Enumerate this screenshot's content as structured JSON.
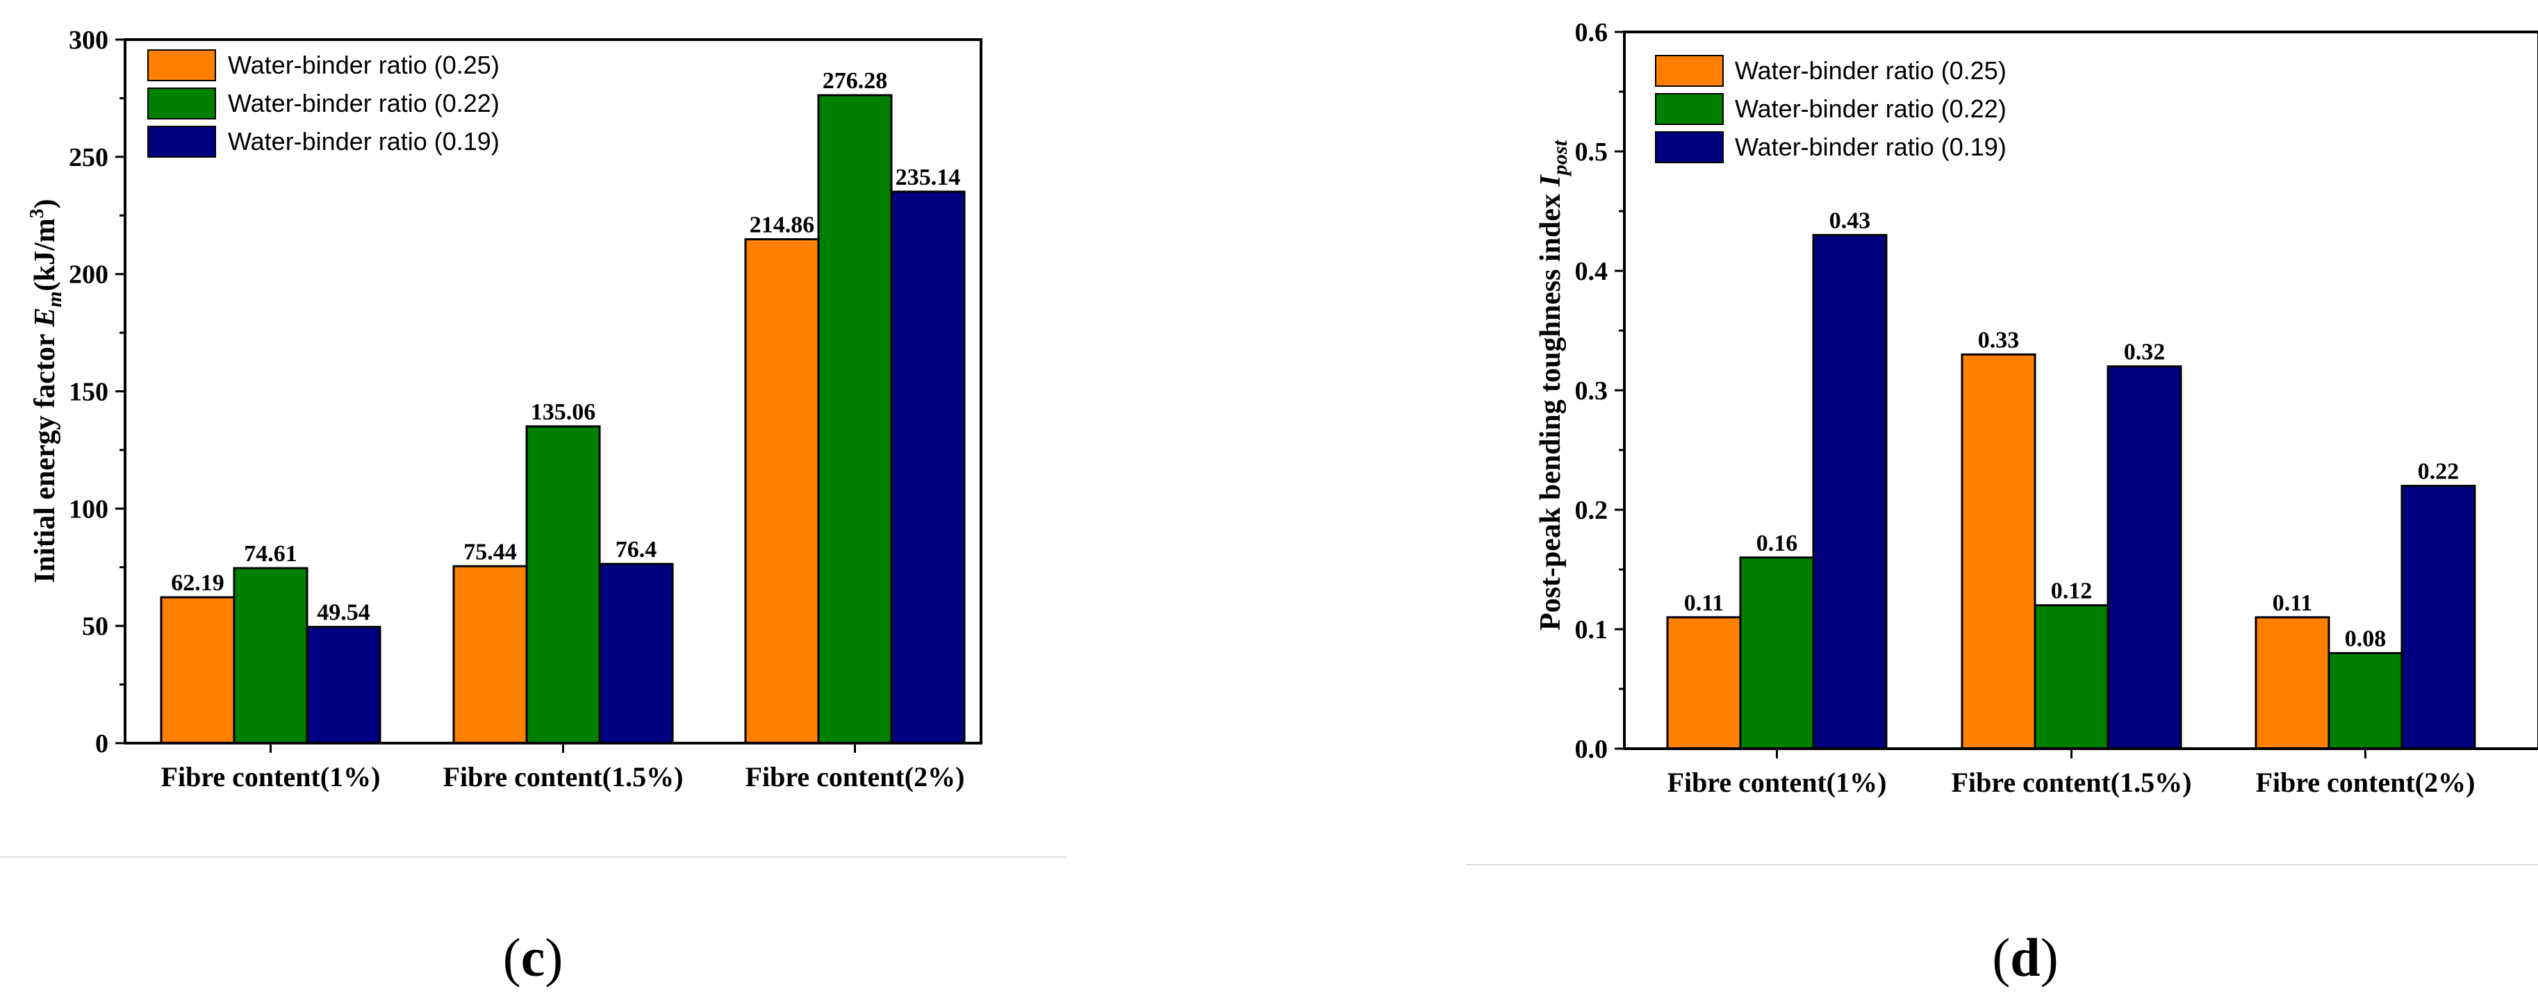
{
  "chart_data": [
    {
      "type": "bar",
      "panel_label": "c",
      "categories": [
        "Fibre content(1%)",
        "Fibre content(1.5%)",
        "Fibre content(2%)"
      ],
      "series": [
        {
          "name": "Water-binder ratio (0.25)",
          "color": "#ff8000",
          "values": [
            62.19,
            75.44,
            214.86
          ]
        },
        {
          "name": "Water-binder ratio (0.22)",
          "color": "#008000",
          "values": [
            74.61,
            135.06,
            276.28
          ]
        },
        {
          "name": "Water-binder ratio (0.19)",
          "color": "#000080",
          "values": [
            49.54,
            76.4,
            235.14
          ]
        }
      ],
      "data_labels": [
        [
          "62.19",
          "75.44",
          "214.86"
        ],
        [
          "74.61",
          "135.06",
          "276.28"
        ],
        [
          "49.54",
          "76.4",
          "235.14"
        ]
      ],
      "ylim": [
        0,
        300
      ],
      "yticks": [
        "0",
        "50",
        "100",
        "150",
        "200",
        "250",
        "300"
      ],
      "ylabel_main": "Initial energy factor ",
      "ylabel_symbol": "E",
      "ylabel_subscript": "m",
      "ylabel_unit": "(kJ/m",
      "ylabel_unit_sup": "3",
      "ylabel_unit_close": ")",
      "legend_position": "top-left"
    },
    {
      "type": "bar",
      "panel_label": "d",
      "categories": [
        "Fibre content(1%)",
        "Fibre content(1.5%)",
        "Fibre content(2%)"
      ],
      "series": [
        {
          "name": "Water-binder ratio (0.25)",
          "color": "#ff8000",
          "values": [
            0.11,
            0.33,
            0.11
          ]
        },
        {
          "name": "Water-binder ratio (0.22)",
          "color": "#008000",
          "values": [
            0.16,
            0.12,
            0.08
          ]
        },
        {
          "name": "Water-binder ratio (0.19)",
          "color": "#000080",
          "values": [
            0.43,
            0.32,
            0.22
          ]
        }
      ],
      "data_labels": [
        [
          "0.11",
          "0.33",
          "0.11"
        ],
        [
          "0.16",
          "0.12",
          "0.08"
        ],
        [
          "0.43",
          "0.32",
          "0.22"
        ]
      ],
      "ylim": [
        0,
        0.6
      ],
      "yticks": [
        "0.0",
        "0.1",
        "0.2",
        "0.3",
        "0.4",
        "0.5",
        "0.6"
      ],
      "ylabel_main": "Post-peak bending toughness index ",
      "ylabel_symbol": "I",
      "ylabel_subscript": "post",
      "legend_position": "top-left"
    }
  ]
}
